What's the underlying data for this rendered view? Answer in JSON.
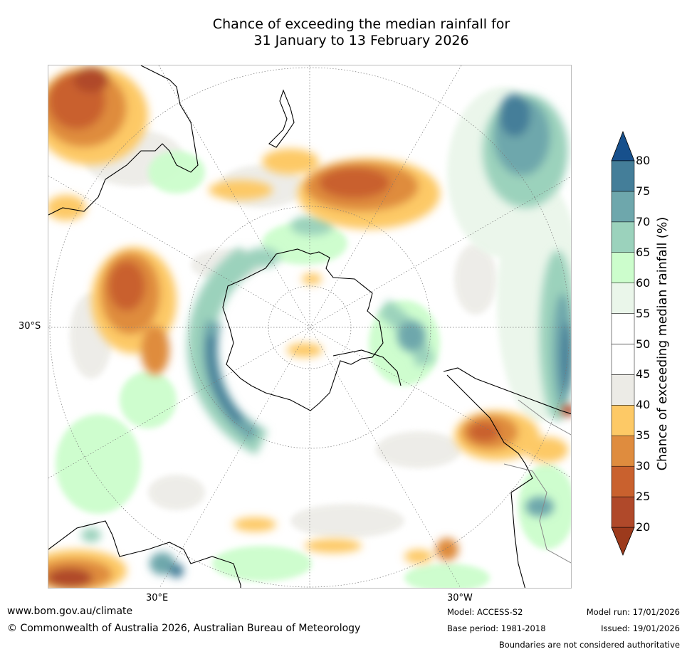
{
  "title_line1": "Chance of exceeding the median rainfall for",
  "title_line2": "31 January to 13 February 2026",
  "map_labels": {
    "lat_30s": "30°S",
    "lon_30e": "30°E",
    "lon_30w": "30°W"
  },
  "colorbar": {
    "title": "Chance of exceeding median rainfall (%)",
    "ticks": [
      "20",
      "25",
      "30",
      "35",
      "40",
      "45",
      "50",
      "55",
      "60",
      "65",
      "70",
      "75",
      "80"
    ],
    "bins": [
      {
        "range": "<20",
        "color": "#9c3a1c"
      },
      {
        "range": "20-25",
        "color": "#b0492a"
      },
      {
        "range": "25-30",
        "color": "#c9612e"
      },
      {
        "range": "30-35",
        "color": "#df8c3e"
      },
      {
        "range": "35-40",
        "color": "#fdc966"
      },
      {
        "range": "40-45",
        "color": "#ecebe6"
      },
      {
        "range": "45-50",
        "color": "#ffffff"
      },
      {
        "range": "50-55",
        "color": "#ffffff"
      },
      {
        "range": "55-60",
        "color": "#eaf6ea"
      },
      {
        "range": "60-65",
        "color": "#ccfdcc"
      },
      {
        "range": "65-70",
        "color": "#9bd2bc"
      },
      {
        "range": "70-75",
        "color": "#6ea7ac"
      },
      {
        "range": "75-80",
        "color": "#447e99"
      },
      {
        "range": ">80",
        "color": "#17508c"
      }
    ]
  },
  "footer": {
    "url": "www.bom.gov.au/climate",
    "copyright": "© Commonwealth of Australia 2026, Australian Bureau of Meteorology",
    "model": "Model: ACCESS-S2",
    "base_period": "Base period: 1981-2018",
    "model_run": "Model run: 17/01/2026",
    "issued": "Issued: 19/01/2026",
    "boundaries_note": "Boundaries are not considered authoritative"
  }
}
